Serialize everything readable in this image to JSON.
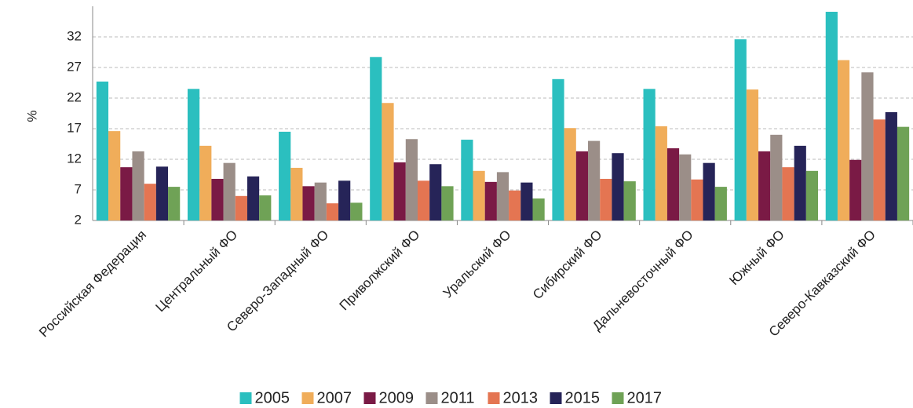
{
  "chart_data": {
    "type": "bar",
    "y_label": "%",
    "categories": [
      "Российская Федерация",
      "Центральный ФО",
      "Северо-Западный ФО",
      "Приволжский ФО",
      "Уральский ФО",
      "Сибирский ФО",
      "Дальневосточный ФО",
      "Южный ФО",
      "Северо-Кавказский ФО"
    ],
    "series": [
      {
        "name": "2005",
        "color": "#2bbfbf",
        "values": [
          24.7,
          23.5,
          16.5,
          28.7,
          15.2,
          25.1,
          23.5,
          31.6,
          36.1
        ]
      },
      {
        "name": "2007",
        "color": "#f0ad5a",
        "values": [
          16.6,
          14.2,
          10.6,
          21.2,
          10.1,
          17.1,
          17.4,
          23.4,
          28.2
        ]
      },
      {
        "name": "2009",
        "color": "#7a1a45",
        "values": [
          10.7,
          8.8,
          7.6,
          11.5,
          8.3,
          13.3,
          13.8,
          13.3,
          11.9
        ]
      },
      {
        "name": "2011",
        "color": "#9b8e88",
        "values": [
          13.3,
          11.4,
          8.2,
          15.3,
          9.9,
          15.0,
          12.8,
          16.0,
          26.2
        ]
      },
      {
        "name": "2013",
        "color": "#e47552",
        "values": [
          8.0,
          6.0,
          4.8,
          8.5,
          6.9,
          8.8,
          8.7,
          10.7,
          18.5
        ]
      },
      {
        "name": "2015",
        "color": "#262458",
        "values": [
          10.8,
          9.2,
          8.5,
          11.2,
          8.2,
          13.0,
          11.4,
          14.2,
          19.7
        ]
      },
      {
        "name": "2017",
        "color": "#6fa256",
        "values": [
          7.5,
          6.1,
          4.9,
          7.6,
          5.6,
          8.4,
          7.5,
          10.1,
          17.3
        ]
      }
    ],
    "ylim": [
      2,
      37
    ],
    "yticks": [
      2,
      7,
      12,
      17,
      22,
      27,
      32
    ],
    "grid": true,
    "legend": "bottom"
  }
}
